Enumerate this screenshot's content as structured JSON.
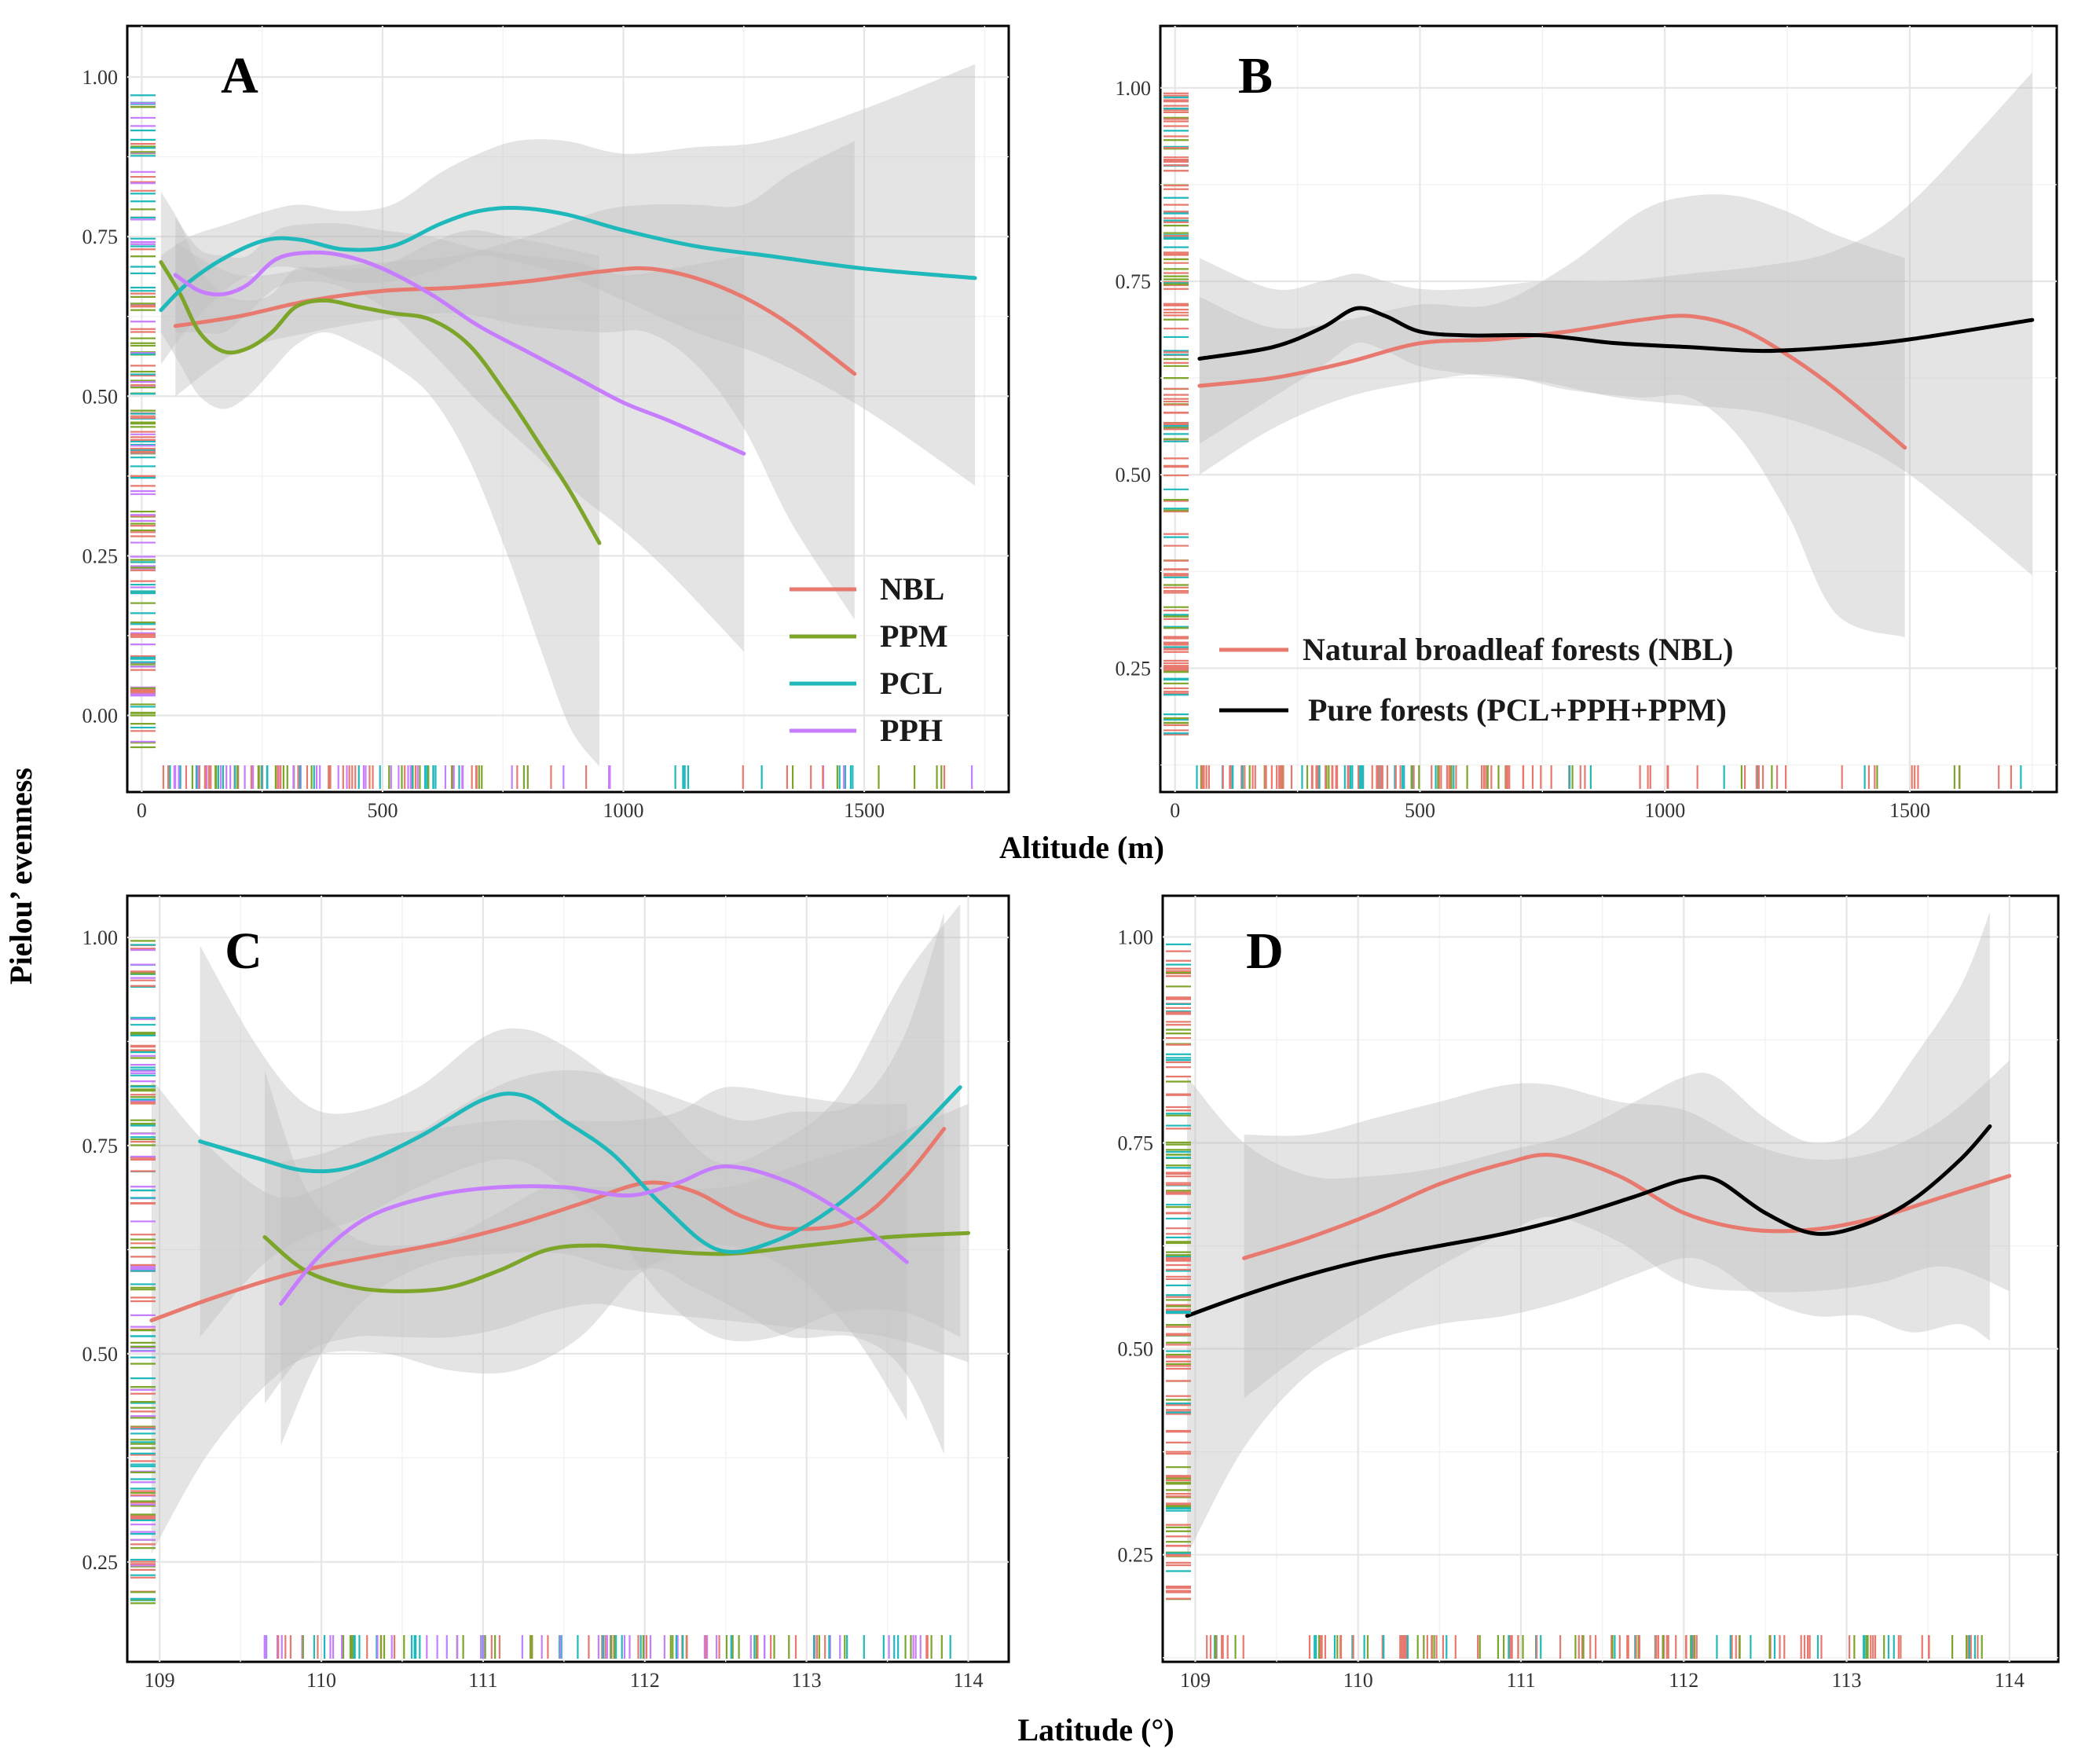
{
  "figure": {
    "y_axis_title": "Pielou’ evenness",
    "x_axis_title_top": "Altitude (m)",
    "x_axis_title_bottom": "Latitude (°)"
  },
  "colors": {
    "NBL": "#e8796f",
    "PPM": "#7ca529",
    "PCL": "#1fb9bb",
    "PPH": "#c77dff",
    "Pure": "#000000",
    "ribbon": "#bebebe"
  },
  "chart_data": [
    {
      "panel": "A",
      "type": "line",
      "xlabel": "Altitude (m)",
      "ylabel": "Pielou’ evenness",
      "xlim": [
        -30,
        1800
      ],
      "ylim": [
        -0.12,
        1.08
      ],
      "xticks": [
        0,
        500,
        1000,
        1500
      ],
      "yticks": [
        0.0,
        0.25,
        0.5,
        0.75,
        1.0
      ],
      "ytick_labels": [
        "0.00",
        "0.25",
        "0.50",
        "0.75",
        "1.00"
      ],
      "legend": {
        "position": "bottom-right",
        "entries": [
          "NBL",
          "PPM",
          "PCL",
          "PPH"
        ]
      },
      "series": [
        {
          "name": "NBL",
          "x": [
            70,
            200,
            350,
            500,
            650,
            800,
            950,
            1050,
            1150,
            1250,
            1350,
            1480
          ],
          "y": [
            0.61,
            0.625,
            0.65,
            0.665,
            0.67,
            0.68,
            0.695,
            0.7,
            0.685,
            0.655,
            0.61,
            0.535
          ],
          "lower": [
            0.5,
            0.57,
            0.6,
            0.62,
            0.63,
            0.61,
            0.6,
            0.6,
            0.55,
            0.45,
            0.3,
            0.15
          ],
          "upper": [
            0.74,
            0.69,
            0.7,
            0.71,
            0.72,
            0.75,
            0.79,
            0.8,
            0.8,
            0.8,
            0.85,
            0.9
          ]
        },
        {
          "name": "PPM",
          "x": [
            40,
            80,
            120,
            170,
            220,
            270,
            320,
            380,
            450,
            520,
            600,
            680,
            760,
            830,
            890,
            950
          ],
          "y": [
            0.71,
            0.66,
            0.6,
            0.57,
            0.575,
            0.6,
            0.64,
            0.65,
            0.64,
            0.63,
            0.62,
            0.58,
            0.5,
            0.42,
            0.35,
            0.27
          ],
          "lower": [
            0.6,
            0.55,
            0.5,
            0.48,
            0.5,
            0.54,
            0.58,
            0.6,
            0.58,
            0.55,
            0.5,
            0.4,
            0.25,
            0.1,
            -0.02,
            -0.08
          ],
          "upper": [
            0.82,
            0.77,
            0.7,
            0.66,
            0.65,
            0.66,
            0.7,
            0.7,
            0.7,
            0.71,
            0.74,
            0.76,
            0.75,
            0.74,
            0.73,
            0.72
          ]
        },
        {
          "name": "PCL",
          "x": [
            40,
            100,
            180,
            260,
            330,
            420,
            520,
            620,
            700,
            780,
            880,
            1000,
            1150,
            1300,
            1500,
            1730
          ],
          "y": [
            0.635,
            0.68,
            0.72,
            0.745,
            0.745,
            0.73,
            0.735,
            0.77,
            0.79,
            0.795,
            0.785,
            0.76,
            0.735,
            0.72,
            0.7,
            0.685
          ],
          "lower": [
            0.55,
            0.61,
            0.67,
            0.7,
            0.7,
            0.68,
            0.68,
            0.7,
            0.72,
            0.71,
            0.69,
            0.65,
            0.6,
            0.56,
            0.48,
            0.36
          ],
          "upper": [
            0.72,
            0.75,
            0.77,
            0.79,
            0.8,
            0.79,
            0.8,
            0.85,
            0.88,
            0.9,
            0.9,
            0.88,
            0.89,
            0.9,
            0.95,
            1.02
          ]
        },
        {
          "name": "PPH",
          "x": [
            70,
            120,
            170,
            220,
            280,
            350,
            420,
            500,
            600,
            700,
            800,
            900,
            1000,
            1100,
            1250
          ],
          "y": [
            0.69,
            0.665,
            0.66,
            0.675,
            0.715,
            0.725,
            0.72,
            0.7,
            0.66,
            0.61,
            0.57,
            0.53,
            0.49,
            0.46,
            0.41
          ],
          "lower": [
            0.6,
            0.6,
            0.6,
            0.63,
            0.67,
            0.68,
            0.67,
            0.64,
            0.57,
            0.49,
            0.42,
            0.35,
            0.29,
            0.22,
            0.1
          ],
          "upper": [
            0.78,
            0.73,
            0.72,
            0.72,
            0.76,
            0.77,
            0.77,
            0.76,
            0.75,
            0.73,
            0.72,
            0.71,
            0.69,
            0.7,
            0.72
          ]
        }
      ]
    },
    {
      "panel": "B",
      "type": "line",
      "xlabel": "Altitude (m)",
      "ylabel": "Pielou’ evenness",
      "xlim": [
        -30,
        1800
      ],
      "ylim": [
        0.09,
        1.08
      ],
      "xticks": [
        0,
        500,
        1000,
        1500
      ],
      "yticks": [
        0.25,
        0.5,
        0.75,
        1.0
      ],
      "ytick_labels": [
        "0.25",
        "0.50",
        "0.75",
        "1.00"
      ],
      "legend": {
        "position": "bottom-left",
        "entries": [
          "Natural broadleaf forests (NBL)",
          "Pure forests (PCL+PPH+PPM)"
        ]
      },
      "series": [
        {
          "name": "Natural broadleaf forests (NBL)",
          "color_key": "NBL",
          "x": [
            50,
            200,
            350,
            500,
            650,
            800,
            950,
            1050,
            1150,
            1250,
            1350,
            1490
          ],
          "y": [
            0.615,
            0.625,
            0.645,
            0.67,
            0.675,
            0.685,
            0.7,
            0.705,
            0.69,
            0.655,
            0.61,
            0.535
          ],
          "lower": [
            0.5,
            0.56,
            0.6,
            0.62,
            0.63,
            0.61,
            0.6,
            0.6,
            0.55,
            0.45,
            0.32,
            0.29
          ],
          "upper": [
            0.73,
            0.69,
            0.7,
            0.72,
            0.72,
            0.77,
            0.84,
            0.86,
            0.86,
            0.84,
            0.81,
            0.78
          ]
        },
        {
          "name": "Pure forests (PCL+PPH+PPM)",
          "color_key": "Pure",
          "x": [
            50,
            200,
            300,
            370,
            430,
            500,
            600,
            750,
            900,
            1050,
            1200,
            1350,
            1500,
            1750
          ],
          "y": [
            0.65,
            0.665,
            0.69,
            0.715,
            0.705,
            0.685,
            0.68,
            0.68,
            0.67,
            0.665,
            0.66,
            0.665,
            0.675,
            0.7
          ],
          "lower": [
            0.54,
            0.6,
            0.64,
            0.67,
            0.66,
            0.64,
            0.63,
            0.62,
            0.6,
            0.59,
            0.58,
            0.55,
            0.5,
            0.37
          ],
          "upper": [
            0.78,
            0.74,
            0.75,
            0.76,
            0.75,
            0.74,
            0.74,
            0.75,
            0.75,
            0.76,
            0.77,
            0.79,
            0.85,
            1.02
          ]
        }
      ]
    },
    {
      "panel": "C",
      "type": "line",
      "xlabel": "Latitude (°)",
      "ylabel": "Pielou’ evenness",
      "xlim": [
        108.8,
        114.25
      ],
      "ylim": [
        0.13,
        1.05
      ],
      "xticks": [
        109,
        110,
        111,
        112,
        113,
        114
      ],
      "yticks": [
        0.25,
        0.5,
        0.75,
        1.0
      ],
      "ytick_labels": [
        "0.25",
        "0.50",
        "0.75",
        "1.00"
      ],
      "series": [
        {
          "name": "NBL",
          "x": [
            108.95,
            109.3,
            109.7,
            110.0,
            110.4,
            110.8,
            111.2,
            111.6,
            112.0,
            112.3,
            112.6,
            112.9,
            113.3,
            113.6,
            113.85
          ],
          "y": [
            0.54,
            0.565,
            0.59,
            0.605,
            0.62,
            0.635,
            0.655,
            0.68,
            0.705,
            0.695,
            0.665,
            0.65,
            0.66,
            0.71,
            0.77
          ],
          "lower": [
            0.26,
            0.38,
            0.47,
            0.5,
            0.5,
            0.48,
            0.48,
            0.52,
            0.6,
            0.58,
            0.55,
            0.52,
            0.52,
            0.48,
            0.38
          ],
          "upper": [
            0.83,
            0.75,
            0.69,
            0.7,
            0.74,
            0.79,
            0.83,
            0.84,
            0.82,
            0.8,
            0.78,
            0.79,
            0.8,
            0.88,
            1.03
          ]
        },
        {
          "name": "PPM",
          "x": [
            109.65,
            109.9,
            110.2,
            110.5,
            110.8,
            111.1,
            111.4,
            111.7,
            112.0,
            112.5,
            113.0,
            113.5,
            114.0
          ],
          "y": [
            0.64,
            0.6,
            0.58,
            0.575,
            0.58,
            0.6,
            0.625,
            0.63,
            0.625,
            0.62,
            0.63,
            0.64,
            0.645
          ],
          "lower": [
            0.44,
            0.5,
            0.52,
            0.52,
            0.52,
            0.53,
            0.55,
            0.56,
            0.55,
            0.54,
            0.53,
            0.52,
            0.49
          ],
          "upper": [
            0.84,
            0.7,
            0.64,
            0.63,
            0.64,
            0.67,
            0.7,
            0.7,
            0.7,
            0.7,
            0.73,
            0.76,
            0.8
          ]
        },
        {
          "name": "PCL",
          "x": [
            109.25,
            109.6,
            109.9,
            110.2,
            110.6,
            111.0,
            111.25,
            111.5,
            111.8,
            112.1,
            112.45,
            112.8,
            113.2,
            113.6,
            113.95
          ],
          "y": [
            0.755,
            0.735,
            0.72,
            0.725,
            0.76,
            0.805,
            0.81,
            0.78,
            0.74,
            0.68,
            0.625,
            0.635,
            0.68,
            0.75,
            0.82
          ],
          "lower": [
            0.52,
            0.6,
            0.64,
            0.66,
            0.7,
            0.73,
            0.73,
            0.7,
            0.65,
            0.57,
            0.52,
            0.52,
            0.55,
            0.55,
            0.52
          ],
          "upper": [
            0.99,
            0.87,
            0.8,
            0.79,
            0.82,
            0.88,
            0.89,
            0.87,
            0.83,
            0.79,
            0.73,
            0.75,
            0.81,
            0.95,
            1.04
          ]
        },
        {
          "name": "PPH",
          "x": [
            109.75,
            110.0,
            110.3,
            110.7,
            111.1,
            111.5,
            111.9,
            112.2,
            112.5,
            112.9,
            113.3,
            113.62
          ],
          "y": [
            0.56,
            0.62,
            0.665,
            0.69,
            0.7,
            0.7,
            0.69,
            0.705,
            0.725,
            0.705,
            0.66,
            0.61
          ],
          "lower": [
            0.39,
            0.5,
            0.57,
            0.61,
            0.62,
            0.62,
            0.6,
            0.62,
            0.63,
            0.6,
            0.52,
            0.42
          ],
          "upper": [
            0.73,
            0.74,
            0.76,
            0.77,
            0.78,
            0.78,
            0.78,
            0.79,
            0.82,
            0.81,
            0.8,
            0.8
          ]
        }
      ]
    },
    {
      "panel": "D",
      "type": "line",
      "xlabel": "Latitude (°)",
      "ylabel": "Pielou’ evenness",
      "xlim": [
        108.8,
        114.3
      ],
      "ylim": [
        0.12,
        1.05
      ],
      "xticks": [
        109,
        110,
        111,
        112,
        113,
        114
      ],
      "yticks": [
        0.25,
        0.5,
        0.75,
        1.0
      ],
      "ytick_labels": [
        "0.25",
        "0.50",
        "0.75",
        "1.00"
      ],
      "series": [
        {
          "name": "NBL",
          "x": [
            109.3,
            109.7,
            110.1,
            110.5,
            110.9,
            111.2,
            111.6,
            112.0,
            112.4,
            112.8,
            113.2,
            113.6,
            114.0
          ],
          "y": [
            0.61,
            0.635,
            0.665,
            0.7,
            0.725,
            0.735,
            0.71,
            0.665,
            0.645,
            0.645,
            0.66,
            0.685,
            0.71
          ],
          "lower": [
            0.44,
            0.5,
            0.55,
            0.6,
            0.64,
            0.66,
            0.63,
            0.58,
            0.57,
            0.57,
            0.58,
            0.6,
            0.57
          ],
          "upper": [
            0.76,
            0.76,
            0.78,
            0.8,
            0.82,
            0.82,
            0.8,
            0.79,
            0.75,
            0.73,
            0.74,
            0.78,
            0.85
          ]
        },
        {
          "name": "Pure",
          "x": [
            108.95,
            109.3,
            109.7,
            110.1,
            110.5,
            110.9,
            111.3,
            111.7,
            112.0,
            112.2,
            112.5,
            112.8,
            113.1,
            113.4,
            113.7,
            113.88
          ],
          "y": [
            0.54,
            0.565,
            0.59,
            0.61,
            0.625,
            0.64,
            0.66,
            0.685,
            0.705,
            0.705,
            0.665,
            0.64,
            0.65,
            0.68,
            0.73,
            0.77
          ],
          "lower": [
            0.25,
            0.38,
            0.47,
            0.51,
            0.53,
            0.54,
            0.56,
            0.59,
            0.61,
            0.6,
            0.56,
            0.54,
            0.54,
            0.52,
            0.53,
            0.51
          ],
          "upper": [
            0.83,
            0.75,
            0.71,
            0.71,
            0.72,
            0.74,
            0.76,
            0.8,
            0.83,
            0.83,
            0.78,
            0.75,
            0.77,
            0.85,
            0.94,
            1.03
          ]
        }
      ]
    }
  ]
}
